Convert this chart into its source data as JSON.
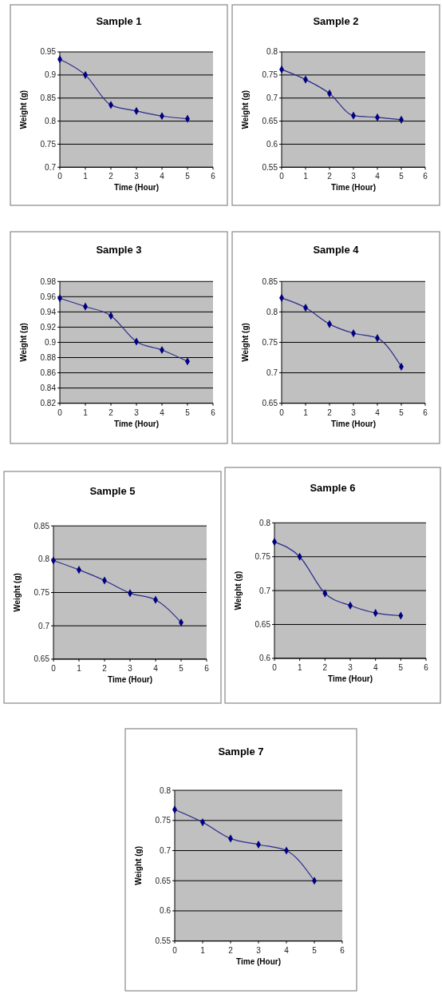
{
  "chart_data": [
    {
      "type": "line",
      "title": "Sample 1",
      "xlabel": "Time (Hour)",
      "ylabel": "Weight (g)",
      "x": [
        0,
        1,
        2,
        3,
        4,
        5
      ],
      "series": [
        {
          "color": "#2b2b8f",
          "values": [
            0.934,
            0.9,
            0.835,
            0.822,
            0.811,
            0.805
          ]
        }
      ],
      "xlim": [
        0,
        6
      ],
      "xticks": [
        0,
        1,
        2,
        3,
        4,
        5,
        6
      ],
      "ylim": [
        0.7,
        0.95
      ],
      "yticks": [
        0.7,
        0.75,
        0.8,
        0.85,
        0.9,
        0.95
      ],
      "grid": "y",
      "marker": "diamond",
      "line_style": "solid"
    },
    {
      "type": "line",
      "title": "Sample 2",
      "xlabel": "Time (Hour)",
      "ylabel": "Weight (g)",
      "x": [
        0,
        1,
        2,
        3,
        4,
        5
      ],
      "series": [
        {
          "color": "#2b2b8f",
          "values": [
            0.762,
            0.74,
            0.71,
            0.662,
            0.658,
            0.653
          ]
        }
      ],
      "xlim": [
        0,
        6
      ],
      "xticks": [
        0,
        1,
        2,
        3,
        4,
        5,
        6
      ],
      "ylim": [
        0.55,
        0.8
      ],
      "yticks": [
        0.55,
        0.6,
        0.65,
        0.7,
        0.75,
        0.8
      ],
      "grid": "y",
      "marker": "diamond",
      "line_style": "solid"
    },
    {
      "type": "line",
      "title": "Sample 3",
      "xlabel": "Time (Hour)",
      "ylabel": "Weight (g)",
      "x": [
        0,
        1,
        2,
        3,
        4,
        5
      ],
      "series": [
        {
          "color": "#2b2b8f",
          "values": [
            0.958,
            0.947,
            0.935,
            0.901,
            0.89,
            0.875
          ]
        }
      ],
      "xlim": [
        0,
        6
      ],
      "xticks": [
        0,
        1,
        2,
        3,
        4,
        5,
        6
      ],
      "ylim": [
        0.82,
        0.98
      ],
      "yticks": [
        0.82,
        0.84,
        0.86,
        0.88,
        0.9,
        0.92,
        0.94,
        0.96,
        0.98
      ],
      "grid": "y",
      "marker": "diamond",
      "line_style": "solid"
    },
    {
      "type": "line",
      "title": "Sample 4",
      "xlabel": "Time (Hour)",
      "ylabel": "Weight (g)",
      "x": [
        0,
        1,
        2,
        3,
        4,
        5
      ],
      "series": [
        {
          "color": "#2b2b8f",
          "values": [
            0.823,
            0.807,
            0.78,
            0.765,
            0.757,
            0.71
          ]
        }
      ],
      "xlim": [
        0,
        6
      ],
      "xticks": [
        0,
        1,
        2,
        3,
        4,
        5,
        6
      ],
      "ylim": [
        0.65,
        0.85
      ],
      "yticks": [
        0.65,
        0.7,
        0.75,
        0.8,
        0.85
      ],
      "grid": "y",
      "marker": "diamond",
      "line_style": "solid"
    },
    {
      "type": "line",
      "title": "Sample 5",
      "xlabel": "Time (Hour)",
      "ylabel": "Weight (g)",
      "x": [
        0,
        1,
        2,
        3,
        4,
        5
      ],
      "series": [
        {
          "color": "#2b2b8f",
          "values": [
            0.798,
            0.784,
            0.768,
            0.749,
            0.739,
            0.705
          ]
        }
      ],
      "xlim": [
        0,
        6
      ],
      "xticks": [
        0,
        1,
        2,
        3,
        4,
        5,
        6
      ],
      "ylim": [
        0.65,
        0.85
      ],
      "yticks": [
        0.65,
        0.7,
        0.75,
        0.8,
        0.85
      ],
      "grid": "y",
      "marker": "diamond",
      "line_style": "solid"
    },
    {
      "type": "line",
      "title": "Sample 6",
      "xlabel": "Time (Hour)",
      "ylabel": "Weight (g)",
      "x": [
        0,
        1,
        2,
        3,
        4,
        5
      ],
      "series": [
        {
          "color": "#2b2b8f",
          "values": [
            0.772,
            0.75,
            0.696,
            0.678,
            0.667,
            0.663
          ]
        }
      ],
      "xlim": [
        0,
        6
      ],
      "xticks": [
        0,
        1,
        2,
        3,
        4,
        5,
        6
      ],
      "ylim": [
        0.6,
        0.8
      ],
      "yticks": [
        0.6,
        0.65,
        0.7,
        0.75,
        0.8
      ],
      "grid": "y",
      "marker": "diamond",
      "line_style": "solid"
    },
    {
      "type": "line",
      "title": "Sample 7",
      "xlabel": "Time (Hour)",
      "ylabel": "Weight (g)",
      "x": [
        0,
        1,
        2,
        3,
        4,
        5
      ],
      "series": [
        {
          "color": "#2b2b8f",
          "values": [
            0.768,
            0.747,
            0.72,
            0.71,
            0.7,
            0.65
          ]
        }
      ],
      "xlim": [
        0,
        6
      ],
      "xticks": [
        0,
        1,
        2,
        3,
        4,
        5,
        6
      ],
      "ylim": [
        0.55,
        0.8
      ],
      "yticks": [
        0.55,
        0.6,
        0.65,
        0.7,
        0.75,
        0.8
      ],
      "grid": "y",
      "marker": "diamond",
      "line_style": "solid"
    }
  ]
}
